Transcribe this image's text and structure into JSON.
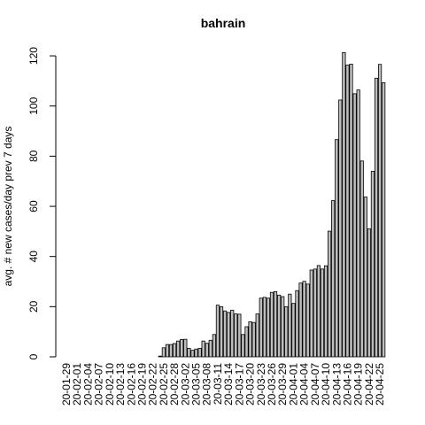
{
  "chart_data": {
    "type": "bar",
    "title": "bahrain",
    "ylabel": "avg. # new cases/day prev  7  days",
    "categories": [
      "20-01-29",
      null,
      null,
      "20-02-01",
      null,
      null,
      "20-02-04",
      null,
      null,
      "20-02-07",
      null,
      null,
      "20-02-10",
      null,
      null,
      "20-02-13",
      null,
      null,
      "20-02-16",
      null,
      null,
      "20-02-19",
      null,
      null,
      "20-02-22",
      null,
      null,
      "20-02-25",
      null,
      null,
      "20-02-28",
      null,
      null,
      "20-03-02",
      null,
      null,
      "20-03-05",
      null,
      null,
      "20-03-08",
      null,
      null,
      "20-03-11",
      null,
      null,
      "20-03-14",
      null,
      null,
      "20-03-17",
      null,
      null,
      "20-03-20",
      null,
      null,
      "20-03-23",
      null,
      null,
      "20-03-26",
      null,
      null,
      "20-03-29",
      null,
      null,
      "20-04-01",
      null,
      null,
      "20-04-04",
      null,
      null,
      "20-04-07",
      null,
      null,
      "20-04-10",
      null,
      null,
      "20-04-13",
      null,
      null,
      "20-04-16",
      null,
      null,
      "20-04-19",
      null,
      null,
      "20-04-22",
      null,
      null,
      "20-04-25",
      null
    ],
    "values": [
      0,
      0,
      0,
      0,
      0,
      0,
      0,
      0,
      0,
      0,
      0,
      0,
      0,
      0,
      0,
      0,
      0,
      0,
      0,
      0,
      0,
      0,
      0,
      0,
      0,
      0,
      0.3,
      3.6,
      4.9,
      4.9,
      5.3,
      6.3,
      6.9,
      7.0,
      3.4,
      2.6,
      3.1,
      3.4,
      6.3,
      5.4,
      6.6,
      8.9,
      20.6,
      20.0,
      18.3,
      17.7,
      18.6,
      17.1,
      17.0,
      8.9,
      12.0,
      14.0,
      13.7,
      17.1,
      23.4,
      23.7,
      23.4,
      25.7,
      26.0,
      24.6,
      24.0,
      20.0,
      25.0,
      21.3,
      26.4,
      29.4,
      30.1,
      29.0,
      34.6,
      35.0,
      36.4,
      35.0,
      36.3,
      50.1,
      62.3,
      86.6,
      102.4,
      121.3,
      116.3,
      116.7,
      104.9,
      106.4,
      78.1,
      63.7,
      51.0,
      74.0,
      111.1,
      116.6,
      109.3
    ],
    "color": "#bebebe",
    "ylim": [
      0,
      121.3
    ],
    "yticks": [
      0,
      20,
      40,
      60,
      80,
      100,
      120
    ],
    "grid": false
  }
}
